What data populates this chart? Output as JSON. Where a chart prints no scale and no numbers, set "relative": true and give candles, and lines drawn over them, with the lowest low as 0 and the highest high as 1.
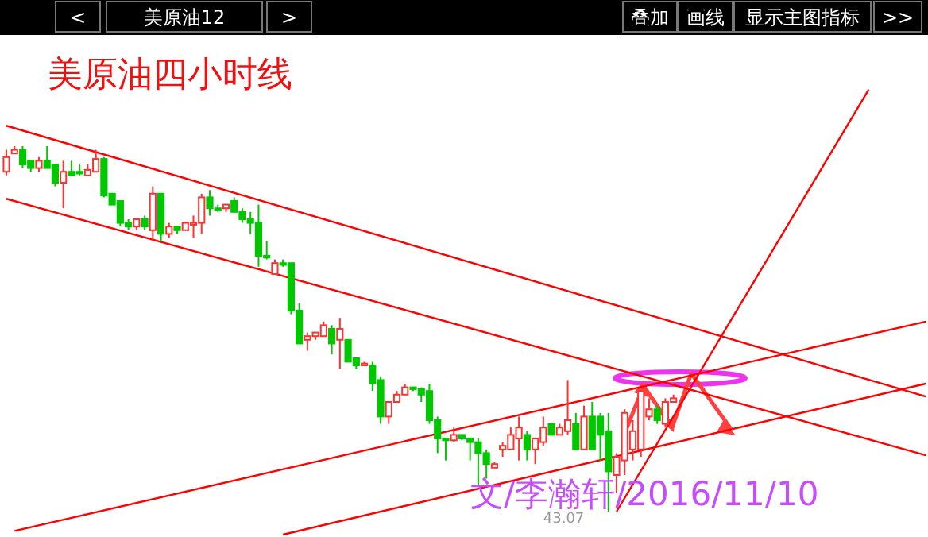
{
  "chart_data": {
    "type": "candlestick",
    "relative": true,
    "title": "美原油四小时线",
    "subtitle": "美原油12",
    "colors": [
      "#ff3232",
      "#ff3232",
      "#00c800",
      "#00c800",
      "#ff3232",
      "#00c800",
      "#00c800",
      "#ff3232",
      "#00c800",
      "#00c800",
      "#ff3232",
      "#ff3232",
      "#00c800",
      "#00c800",
      "#00c800",
      "#00c800",
      "#ff3232",
      "#00c800",
      "#ff3232",
      "#00c800",
      "#ff3232",
      "#00c800",
      "#ff3232",
      "#ff3232",
      "#ff3232",
      "#00c800",
      "#00c800",
      "#ff3232",
      "#00c800",
      "#00c800",
      "#00c800",
      "#00c800",
      "#00c800",
      "#ff3232",
      "#00c800",
      "#00c800",
      "#00c800",
      "#ff3232",
      "#ff3232",
      "#ff3232",
      "#00c800",
      "#ff3232",
      "#00c800",
      "#00c800",
      "#ff3232",
      "#00c800",
      "#00c800",
      "#ff3232",
      "#ff3232",
      "#ff3232",
      "#00c800",
      "#00c800",
      "#00c800",
      "#00c800",
      "#00c800",
      "#ff3232",
      "#00c800",
      "#00c800",
      "#00c800",
      "#00c800",
      "#ff3232",
      "#ff3232",
      "#ff3232",
      "#ff3232",
      "#00c800",
      "#ff3232",
      "#ff3232",
      "#00c800",
      "#ff3232",
      "#ff3232",
      "#00c800",
      "#ff3232",
      "#00c800",
      "#00c800",
      "#00c800",
      "#ff3232",
      "#ff3232",
      "#ff3232",
      "#ff3232",
      "#ff3232",
      "#00c800",
      "#ff3232",
      "#ff3232",
      null,
      null,
      null,
      null,
      null,
      null,
      null,
      null,
      null,
      null,
      null,
      null,
      null,
      null,
      null,
      null,
      null,
      null,
      null,
      null,
      null,
      null,
      null,
      null,
      null,
      null,
      null,
      null,
      null,
      null,
      null
    ],
    "categories": [
      null,
      null,
      null,
      null,
      null,
      null,
      null,
      null,
      null,
      null,
      null,
      null,
      null,
      null,
      null,
      null,
      null,
      null,
      null,
      null,
      null,
      null,
      null,
      null,
      null,
      null,
      null,
      null,
      null,
      null,
      null,
      null,
      null,
      null,
      null,
      null,
      null,
      null,
      null,
      null,
      null,
      null,
      null,
      null,
      null,
      null,
      null,
      null,
      null,
      null,
      null,
      null,
      null,
      null,
      null,
      null,
      null,
      null,
      null,
      null,
      null,
      null,
      null,
      null,
      null,
      null,
      null,
      null,
      null,
      null,
      null,
      null,
      null,
      null,
      null,
      null,
      null,
      null,
      null,
      null,
      null,
      null,
      null,
      null,
      null,
      null,
      null,
      null,
      null,
      null,
      null,
      null,
      null,
      null,
      null,
      null,
      null,
      null,
      null,
      null,
      null,
      null,
      null,
      null,
      null,
      null,
      null,
      null,
      null,
      null,
      null,
      null,
      null,
      null
    ],
    "ohlc": [
      [
        0.93,
        0.99,
        0.92,
        0.97
      ],
      [
        0.98,
        1.0,
        0.98,
        0.99
      ],
      [
        0.99,
        1.0,
        0.94,
        0.95
      ],
      [
        0.96,
        0.96,
        0.93,
        0.94
      ],
      [
        0.94,
        0.97,
        0.93,
        0.96
      ],
      [
        0.96,
        1.0,
        0.94,
        0.94
      ],
      [
        0.95,
        0.95,
        0.89,
        0.9
      ],
      [
        0.9,
        0.96,
        0.83,
        0.93
      ],
      [
        0.93,
        0.96,
        0.92,
        0.92
      ],
      [
        0.93,
        0.95,
        0.92,
        0.925
      ],
      [
        0.92,
        0.95,
        0.92,
        0.935
      ],
      [
        0.93,
        0.99,
        0.93,
        0.965
      ],
      [
        0.965,
        0.97,
        0.86,
        0.865
      ],
      [
        0.87,
        0.87,
        0.84,
        0.84
      ],
      [
        0.85,
        0.85,
        0.78,
        0.79
      ],
      [
        0.79,
        0.8,
        0.77,
        0.78
      ],
      [
        0.78,
        0.8,
        0.77,
        0.8
      ],
      [
        0.8,
        0.81,
        0.77,
        0.78
      ],
      [
        0.77,
        0.89,
        0.74,
        0.87
      ],
      [
        0.87,
        0.87,
        0.74,
        0.76
      ],
      [
        0.76,
        0.79,
        0.75,
        0.78
      ],
      [
        0.78,
        0.78,
        0.76,
        0.77
      ],
      [
        0.77,
        0.79,
        0.77,
        0.79
      ],
      [
        0.785,
        0.81,
        0.75,
        0.79
      ],
      [
        0.79,
        0.87,
        0.76,
        0.86
      ],
      [
        0.86,
        0.88,
        0.81,
        0.83
      ],
      [
        0.83,
        0.84,
        0.82,
        0.825
      ],
      [
        0.83,
        0.84,
        0.82,
        0.84
      ],
      [
        0.85,
        0.86,
        0.82,
        0.82
      ],
      [
        0.82,
        0.83,
        0.79,
        0.8
      ],
      [
        0.8,
        0.82,
        0.76,
        0.79
      ],
      [
        0.79,
        0.84,
        0.67,
        0.7
      ],
      [
        0.7,
        0.74,
        0.69,
        0.695
      ],
      [
        0.65,
        0.69,
        0.65,
        0.68
      ],
      [
        0.68,
        0.69,
        0.67,
        0.675
      ],
      [
        0.68,
        0.68,
        0.54,
        0.55
      ],
      [
        0.55,
        0.57,
        0.46,
        0.46
      ],
      [
        0.47,
        0.49,
        0.44,
        0.48
      ],
      [
        0.48,
        0.49,
        0.47,
        0.49
      ],
      [
        0.48,
        0.52,
        0.48,
        0.51
      ],
      [
        0.5,
        0.51,
        0.43,
        0.46
      ],
      [
        0.47,
        0.53,
        0.39,
        0.5
      ],
      [
        0.47,
        0.47,
        0.41,
        0.41
      ],
      [
        0.42,
        0.42,
        0.39,
        0.4
      ],
      [
        0.4,
        0.41,
        0.4,
        0.405
      ],
      [
        0.4,
        0.41,
        0.33,
        0.35
      ],
      [
        0.36,
        0.37,
        0.24,
        0.26
      ],
      [
        0.26,
        0.3,
        0.24,
        0.3
      ],
      [
        0.3,
        0.33,
        0.3,
        0.32
      ],
      [
        0.32,
        0.35,
        0.32,
        0.34
      ],
      [
        0.34,
        0.34,
        0.33,
        0.335
      ],
      [
        0.335,
        0.34,
        0.3,
        0.32
      ],
      [
        0.33,
        0.35,
        0.24,
        0.25
      ],
      [
        0.25,
        0.26,
        0.16,
        0.2
      ],
      [
        0.2,
        0.2,
        0.14,
        0.195
      ],
      [
        0.195,
        0.23,
        0.19,
        0.21
      ],
      [
        0.21,
        0.21,
        0.195,
        0.2
      ],
      [
        0.2,
        0.2,
        0.14,
        0.19
      ],
      [
        0.19,
        0.2,
        0.07,
        0.16
      ],
      [
        0.16,
        0.17,
        0.09,
        0.13
      ],
      [
        0.12,
        0.135,
        0.12,
        0.13
      ],
      [
        0.17,
        0.19,
        0.15,
        0.18
      ],
      [
        0.17,
        0.23,
        0.17,
        0.21
      ],
      [
        0.2,
        0.26,
        0.14,
        0.23
      ],
      [
        0.21,
        0.22,
        0.14,
        0.17
      ],
      [
        0.17,
        0.2,
        0.13,
        0.2
      ],
      [
        0.19,
        0.26,
        0.18,
        0.23
      ],
      [
        0.24,
        0.24,
        0.21,
        0.21
      ],
      [
        0.21,
        0.24,
        0.21,
        0.23
      ],
      [
        0.22,
        0.36,
        0.21,
        0.25
      ],
      [
        0.24,
        0.27,
        0.17,
        0.17
      ],
      [
        0.17,
        0.29,
        0.17,
        0.26
      ],
      [
        0.26,
        0.3,
        0.17,
        0.17
      ],
      [
        0.26,
        0.27,
        0.14,
        0.21
      ],
      [
        0.22,
        0.27,
        0.0,
        0.11
      ],
      [
        0.1,
        0.16,
        0.05,
        0.15
      ],
      [
        0.14,
        0.28,
        0.1,
        0.27
      ],
      [
        0.17,
        0.25,
        0.14,
        0.22
      ],
      [
        0.17,
        0.33,
        0.15,
        0.33
      ],
      [
        0.26,
        0.31,
        0.25,
        0.28
      ],
      [
        0.28,
        0.29,
        0.24,
        0.25
      ],
      [
        0.24,
        0.31,
        0.23,
        0.3
      ],
      [
        0.3,
        0.32,
        0.3,
        0.31
      ],
      null,
      null,
      null,
      null,
      null,
      null,
      null,
      null,
      null,
      null,
      null,
      null,
      null,
      null,
      null,
      null,
      null,
      null,
      null,
      null,
      null,
      null,
      null,
      null,
      null,
      null,
      null,
      null,
      null,
      null,
      null
    ],
    "series": [
      {
        "type": "line",
        "color": "#ff0000",
        "values": [
          1.056,
          null,
          null,
          null,
          null,
          null,
          null,
          null,
          null,
          null,
          null,
          null,
          null,
          null,
          null,
          null,
          null,
          null,
          null,
          null,
          null,
          null,
          null,
          null,
          null,
          null,
          null,
          null,
          null,
          null,
          null,
          null,
          null,
          null,
          null,
          null,
          null,
          null,
          null,
          null,
          null,
          null,
          null,
          null,
          null,
          null,
          null,
          null,
          null,
          null,
          null,
          null,
          null,
          null,
          null,
          null,
          null,
          null,
          null,
          null,
          null,
          null,
          null,
          null,
          null,
          null,
          null,
          null,
          null,
          null,
          null,
          null,
          null,
          null,
          null,
          null,
          null,
          null,
          null,
          null,
          null,
          null,
          null,
          null,
          null,
          null,
          null,
          null,
          null,
          null,
          null,
          null,
          null,
          null,
          null,
          null,
          null,
          null,
          null,
          null,
          null,
          null,
          null,
          null,
          null,
          null,
          null,
          null,
          null,
          null,
          null,
          null,
          null,
          0.315
        ]
      },
      {
        "type": "line",
        "color": "#ff0000",
        "values": [
          0.856,
          null,
          null,
          null,
          null,
          null,
          null,
          null,
          null,
          null,
          null,
          null,
          null,
          null,
          null,
          null,
          null,
          null,
          null,
          null,
          null,
          null,
          null,
          null,
          null,
          null,
          null,
          null,
          null,
          null,
          null,
          null,
          null,
          null,
          null,
          null,
          null,
          null,
          null,
          null,
          null,
          null,
          null,
          null,
          null,
          null,
          null,
          null,
          null,
          null,
          null,
          null,
          null,
          null,
          null,
          null,
          null,
          null,
          null,
          null,
          null,
          null,
          null,
          null,
          null,
          null,
          null,
          null,
          null,
          null,
          null,
          null,
          null,
          null,
          null,
          null,
          null,
          null,
          null,
          null,
          null,
          null,
          null,
          null,
          null,
          null,
          null,
          null,
          null,
          null,
          null,
          null,
          null,
          null,
          null,
          null,
          null,
          null,
          null,
          null,
          null,
          null,
          null,
          null,
          null,
          null,
          null,
          null,
          null,
          null,
          null,
          null,
          null,
          0.154
        ]
      },
      {
        "type": "line",
        "color": "#ff0000",
        "values": [
          null,
          -0.053,
          null,
          null,
          null,
          null,
          null,
          null,
          null,
          null,
          null,
          null,
          null,
          null,
          null,
          null,
          null,
          null,
          null,
          null,
          null,
          null,
          null,
          null,
          null,
          null,
          null,
          null,
          null,
          null,
          null,
          null,
          null,
          null,
          null,
          null,
          null,
          null,
          null,
          null,
          null,
          null,
          null,
          null,
          null,
          null,
          null,
          null,
          null,
          null,
          null,
          null,
          null,
          null,
          null,
          null,
          null,
          null,
          null,
          null,
          null,
          null,
          null,
          null,
          null,
          null,
          null,
          null,
          null,
          null,
          null,
          null,
          null,
          null,
          null,
          null,
          null,
          null,
          null,
          null,
          null,
          null,
          null,
          null,
          null,
          null,
          null,
          null,
          null,
          null,
          null,
          null,
          null,
          null,
          null,
          null,
          null,
          null,
          null,
          null,
          null,
          null,
          null,
          null,
          null,
          null,
          null,
          null,
          null,
          null,
          null,
          null,
          null,
          0.52
        ]
      },
      {
        "type": "line",
        "color": "#ff0000",
        "values": [
          null,
          null,
          null,
          null,
          null,
          null,
          null,
          null,
          null,
          null,
          null,
          null,
          null,
          null,
          null,
          null,
          null,
          null,
          null,
          null,
          null,
          null,
          null,
          null,
          null,
          null,
          null,
          null,
          null,
          null,
          null,
          null,
          null,
          null,
          -0.063,
          null,
          null,
          null,
          null,
          null,
          null,
          null,
          null,
          null,
          null,
          null,
          null,
          null,
          null,
          null,
          null,
          null,
          null,
          null,
          null,
          null,
          null,
          null,
          null,
          null,
          null,
          null,
          null,
          null,
          null,
          null,
          null,
          null,
          null,
          null,
          null,
          null,
          null,
          null,
          null,
          null,
          null,
          null,
          null,
          null,
          null,
          null,
          null,
          null,
          null,
          null,
          null,
          null,
          null,
          null,
          null,
          null,
          null,
          null,
          null,
          null,
          null,
          null,
          null,
          null,
          null,
          null,
          null,
          null,
          null,
          null,
          null,
          null,
          null,
          null,
          null,
          null,
          null,
          0.35
        ]
      },
      {
        "type": "line",
        "color": "#ff0000",
        "values": [
          null,
          null,
          null,
          null,
          null,
          null,
          null,
          null,
          null,
          null,
          null,
          null,
          null,
          null,
          null,
          null,
          null,
          null,
          null,
          null,
          null,
          null,
          null,
          null,
          null,
          null,
          null,
          null,
          null,
          null,
          null,
          null,
          null,
          null,
          null,
          null,
          null,
          null,
          null,
          null,
          null,
          null,
          null,
          null,
          null,
          null,
          null,
          null,
          null,
          null,
          null,
          null,
          null,
          null,
          null,
          null,
          null,
          null,
          null,
          null,
          null,
          null,
          null,
          null,
          null,
          null,
          null,
          null,
          null,
          null,
          null,
          null,
          null,
          null,
          null,
          0.0,
          null,
          null,
          null,
          null,
          null,
          null,
          null,
          null,
          null,
          null,
          null,
          null,
          null,
          null,
          null,
          null,
          null,
          null,
          null,
          null,
          null,
          null,
          null,
          null,
          null,
          null,
          null,
          null,
          null,
          null,
          1.155,
          null,
          null,
          null,
          null,
          null,
          null,
          null
        ]
      }
    ],
    "annotations": [
      "<",
      ">",
      "叠加",
      "画线",
      "显示主图指标",
      ">>",
      "文/李瀚轩/2016/11/10",
      "43.07"
    ]
  }
}
